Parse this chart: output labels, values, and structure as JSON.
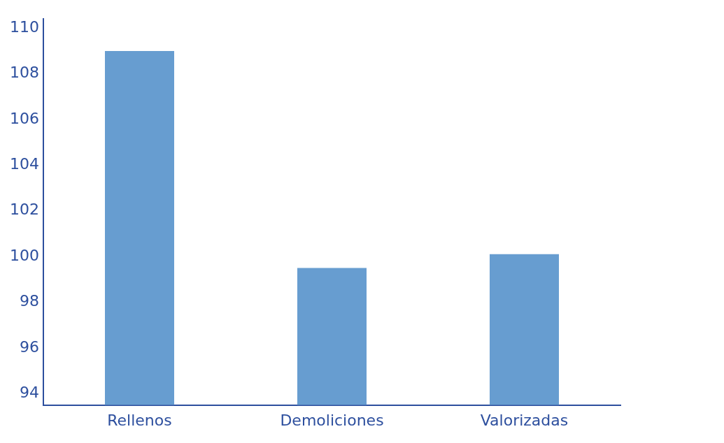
{
  "chart_data": {
    "type": "bar",
    "categories": [
      "Rellenos",
      "Demoliciones",
      "Valorizadas"
    ],
    "values": [
      109,
      99.5,
      100.1
    ],
    "color": "#679dd0",
    "ylim": [
      93.5,
      110.4
    ],
    "yticks": [
      94,
      96,
      98,
      100,
      102,
      104,
      106,
      108,
      110
    ],
    "grid": false,
    "legend": false
  }
}
